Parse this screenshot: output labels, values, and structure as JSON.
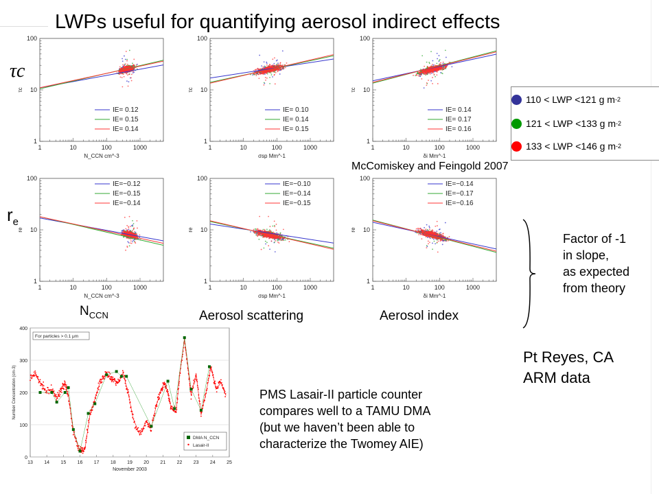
{
  "title": "LWPs useful for quantifying aerosol indirect effects",
  "row_labels": {
    "top": "τc",
    "bottom_base": "r",
    "bottom_sub": "e"
  },
  "captions": {
    "col1_base": "N",
    "col1_sub": "CCN",
    "col2": "Aerosol scattering",
    "col3": "Aerosol index"
  },
  "legend": [
    {
      "text": "110 < LWP <121 g m",
      "sup": "-2",
      "color": "#333399"
    },
    {
      "text": "121 < LWP <133 g m",
      "sup": "-2",
      "color": "#009900"
    },
    {
      "text": "133 < LWP <146 g m",
      "sup": "-2",
      "color": "#ff0000"
    }
  ],
  "credit": "McComiskey and Feingold 2007",
  "factor_note": [
    "Factor of -1",
    "in slope,",
    "as expected",
    "from theory"
  ],
  "site": [
    "Pt Reyes, CA",
    "ARM data"
  ],
  "pms_note": [
    "PMS Lasair-II particle counter",
    "compares well to a TAMU DMA",
    "(but we haven’t been able to",
    "characterize the Twomey AIE)"
  ],
  "chart_data": [
    {
      "type": "scatter",
      "panel": "tau-vs-nccn",
      "xlabel": "N_CCN cm^-3",
      "ylabel": "τc",
      "x_scale": "log",
      "y_scale": "log",
      "xlim": [
        1,
        5000
      ],
      "ylim": [
        1,
        100
      ],
      "x_ticks": [
        "1",
        "10",
        "100",
        "1000"
      ],
      "y_ticks": [
        "1",
        "10",
        "100"
      ],
      "series": [
        {
          "name": "IE= 0.12",
          "color": "#3333cc",
          "slope": 0.12,
          "intercept": 11,
          "center": [
            400,
            25
          ]
        },
        {
          "name": "IE= 0.15",
          "color": "#33aa33",
          "slope": 0.15,
          "intercept": 10.5,
          "center": [
            400,
            25
          ]
        },
        {
          "name": "IE= 0.14",
          "color": "#ff3333",
          "slope": 0.14,
          "intercept": 11,
          "center": [
            400,
            25
          ]
        }
      ]
    },
    {
      "type": "scatter",
      "panel": "tau-vs-scattering",
      "xlabel": "σsp Mm^-1",
      "ylabel": "τc",
      "x_scale": "log",
      "y_scale": "log",
      "xlim": [
        1,
        5000
      ],
      "ylim": [
        1,
        100
      ],
      "x_ticks": [
        "1",
        "10",
        "100",
        "1000"
      ],
      "y_ticks": [
        "1",
        "10",
        "100"
      ],
      "series": [
        {
          "name": "IE= 0.10",
          "color": "#3333cc",
          "slope": 0.1,
          "intercept": 17,
          "center": [
            60,
            25
          ]
        },
        {
          "name": "IE= 0.14",
          "color": "#33aa33",
          "slope": 0.14,
          "intercept": 14,
          "center": [
            60,
            25
          ]
        },
        {
          "name": "IE= 0.15",
          "color": "#ff3333",
          "slope": 0.15,
          "intercept": 13.5,
          "center": [
            60,
            25
          ]
        }
      ]
    },
    {
      "type": "scatter",
      "panel": "tau-vs-index",
      "xlabel": "δi Mm^-1",
      "ylabel": "τc",
      "x_scale": "log",
      "y_scale": "log",
      "xlim": [
        1,
        5000
      ],
      "ylim": [
        1,
        100
      ],
      "x_ticks": [
        "1",
        "10",
        "100",
        "1000"
      ],
      "y_ticks": [
        "1",
        "10",
        "100"
      ],
      "series": [
        {
          "name": "IE= 0.14",
          "color": "#3333cc",
          "slope": 0.14,
          "intercept": 15,
          "center": [
            60,
            25
          ]
        },
        {
          "name": "IE= 0.17",
          "color": "#33aa33",
          "slope": 0.17,
          "intercept": 13.5,
          "center": [
            60,
            25
          ]
        },
        {
          "name": "IE= 0.16",
          "color": "#ff3333",
          "slope": 0.16,
          "intercept": 14,
          "center": [
            60,
            25
          ]
        }
      ]
    },
    {
      "type": "scatter",
      "panel": "re-vs-nccn",
      "xlabel": "N_CCN cm^-3",
      "ylabel": "re",
      "x_scale": "log",
      "y_scale": "log",
      "xlim": [
        1,
        5000
      ],
      "ylim": [
        1,
        100
      ],
      "x_ticks": [
        "1",
        "10",
        "100",
        "1000"
      ],
      "y_ticks": [
        "1",
        "10",
        "100"
      ],
      "series": [
        {
          "name": "IE=−0.12",
          "color": "#3333cc",
          "slope": -0.12,
          "intercept": 17,
          "center": [
            500,
            8
          ]
        },
        {
          "name": "IE=−0.15",
          "color": "#33aa33",
          "slope": -0.15,
          "intercept": 18,
          "center": [
            500,
            8
          ]
        },
        {
          "name": "IE=−0.14",
          "color": "#ff3333",
          "slope": -0.14,
          "intercept": 18,
          "center": [
            500,
            8
          ]
        }
      ]
    },
    {
      "type": "scatter",
      "panel": "re-vs-scattering",
      "xlabel": "σsp Mm^-1",
      "ylabel": "re",
      "x_scale": "log",
      "y_scale": "log",
      "xlim": [
        1,
        5000
      ],
      "ylim": [
        1,
        100
      ],
      "x_ticks": [
        "1",
        "10",
        "100",
        "1000"
      ],
      "y_ticks": [
        "1",
        "10",
        "100"
      ],
      "series": [
        {
          "name": "IE=−0.10",
          "color": "#3333cc",
          "slope": -0.1,
          "intercept": 13,
          "center": [
            60,
            8
          ]
        },
        {
          "name": "IE=−0.14",
          "color": "#33aa33",
          "slope": -0.14,
          "intercept": 14.5,
          "center": [
            60,
            8
          ]
        },
        {
          "name": "IE=−0.15",
          "color": "#ff3333",
          "slope": -0.15,
          "intercept": 15,
          "center": [
            60,
            8
          ]
        }
      ]
    },
    {
      "type": "scatter",
      "panel": "re-vs-index",
      "xlabel": "δi Mm^-1",
      "ylabel": "re",
      "x_scale": "log",
      "y_scale": "log",
      "xlim": [
        1,
        5000
      ],
      "ylim": [
        1,
        100
      ],
      "x_ticks": [
        "1",
        "10",
        "100",
        "1000"
      ],
      "y_ticks": [
        "1",
        "10",
        "100"
      ],
      "series": [
        {
          "name": "IE=−0.14",
          "color": "#3333cc",
          "slope": -0.14,
          "intercept": 14,
          "center": [
            60,
            8
          ]
        },
        {
          "name": "IE=−0.17",
          "color": "#33aa33",
          "slope": -0.17,
          "intercept": 15.5,
          "center": [
            60,
            8
          ]
        },
        {
          "name": "IE=−0.16",
          "color": "#ff3333",
          "slope": -0.16,
          "intercept": 15,
          "center": [
            60,
            8
          ]
        }
      ]
    },
    {
      "type": "line",
      "panel": "number-concentration-timeseries",
      "inset_label": "For particles > 0.1 μm",
      "xlabel": "November 2003",
      "ylabel": "Number Concentration (cm-3)",
      "xlim": [
        13,
        25
      ],
      "ylim": [
        0,
        400
      ],
      "x_ticks": [
        "13",
        "14",
        "15",
        "16",
        "17",
        "18",
        "19",
        "20",
        "21",
        "22",
        "23",
        "24",
        "25"
      ],
      "y_ticks": [
        "0",
        "100",
        "200",
        "300",
        "400"
      ],
      "series": [
        {
          "name": "DMA N_CCN",
          "color": "#006600",
          "x": [
            13.6,
            14.3,
            14.6,
            15.1,
            15.3,
            15.6,
            16.0,
            16.5,
            16.9,
            17.6,
            18.2,
            18.5,
            18.8,
            20.3,
            21.3,
            21.7,
            22.3,
            22.7,
            23.3,
            23.8
          ],
          "y": [
            200,
            200,
            170,
            200,
            215,
            85,
            18,
            135,
            165,
            255,
            265,
            250,
            250,
            95,
            235,
            150,
            370,
            210,
            145,
            280
          ]
        },
        {
          "name": "Lasair-II",
          "color": "#ff0000",
          "x": [
            13.0,
            13.3,
            13.6,
            13.9,
            14.3,
            14.6,
            14.9,
            15.1,
            15.3,
            15.6,
            15.9,
            16.1,
            16.3,
            16.6,
            16.9,
            17.2,
            17.5,
            17.8,
            18.0,
            18.3,
            18.6,
            18.9,
            19.2,
            19.6,
            20.0,
            20.3,
            20.6,
            20.9,
            21.1,
            21.3,
            21.5,
            21.8,
            22.0,
            22.3,
            22.5,
            22.7,
            23.0,
            23.3,
            23.6,
            23.9,
            24.2,
            24.5,
            24.8
          ],
          "y": [
            245,
            260,
            230,
            205,
            210,
            180,
            215,
            230,
            190,
            80,
            30,
            20,
            25,
            130,
            180,
            230,
            255,
            250,
            240,
            230,
            260,
            200,
            120,
            70,
            110,
            90,
            160,
            210,
            230,
            200,
            150,
            140,
            250,
            365,
            280,
            190,
            260,
            130,
            200,
            280,
            210,
            230,
            190
          ]
        }
      ]
    }
  ]
}
